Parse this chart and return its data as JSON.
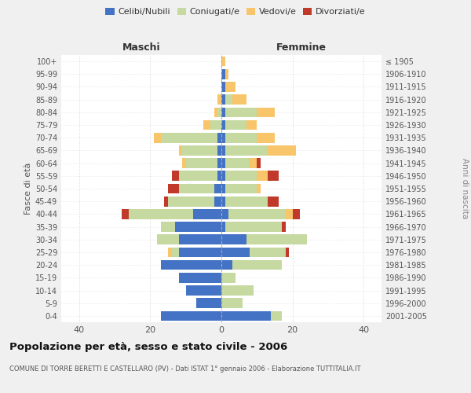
{
  "age_groups": [
    "0-4",
    "5-9",
    "10-14",
    "15-19",
    "20-24",
    "25-29",
    "30-34",
    "35-39",
    "40-44",
    "45-49",
    "50-54",
    "55-59",
    "60-64",
    "65-69",
    "70-74",
    "75-79",
    "80-84",
    "85-89",
    "90-94",
    "95-99",
    "100+"
  ],
  "birth_years": [
    "2001-2005",
    "1996-2000",
    "1991-1995",
    "1986-1990",
    "1981-1985",
    "1976-1980",
    "1971-1975",
    "1966-1970",
    "1961-1965",
    "1956-1960",
    "1951-1955",
    "1946-1950",
    "1941-1945",
    "1936-1940",
    "1931-1935",
    "1926-1930",
    "1921-1925",
    "1916-1920",
    "1911-1915",
    "1906-1910",
    "≤ 1905"
  ],
  "male": {
    "celibe": [
      17,
      7,
      10,
      12,
      17,
      12,
      12,
      13,
      8,
      2,
      2,
      1,
      1,
      1,
      1,
      0,
      0,
      0,
      0,
      0,
      0
    ],
    "coniugato": [
      0,
      0,
      0,
      0,
      0,
      2,
      6,
      4,
      18,
      13,
      10,
      11,
      9,
      10,
      16,
      3,
      1,
      0,
      0,
      0,
      0
    ],
    "vedovo": [
      0,
      0,
      0,
      0,
      0,
      1,
      0,
      0,
      0,
      0,
      0,
      0,
      1,
      1,
      2,
      2,
      1,
      1,
      0,
      0,
      0
    ],
    "divorziato": [
      0,
      0,
      0,
      0,
      0,
      0,
      0,
      0,
      2,
      1,
      3,
      2,
      0,
      0,
      0,
      0,
      0,
      0,
      0,
      0,
      0
    ]
  },
  "female": {
    "nubile": [
      14,
      0,
      0,
      0,
      3,
      8,
      7,
      1,
      2,
      1,
      1,
      1,
      1,
      1,
      1,
      1,
      1,
      1,
      1,
      1,
      0
    ],
    "coniugata": [
      3,
      6,
      9,
      4,
      14,
      10,
      17,
      16,
      16,
      12,
      9,
      9,
      7,
      12,
      9,
      6,
      9,
      2,
      0,
      0,
      0
    ],
    "vedova": [
      0,
      0,
      0,
      0,
      0,
      0,
      0,
      0,
      2,
      0,
      1,
      3,
      2,
      8,
      5,
      3,
      5,
      4,
      3,
      1,
      1
    ],
    "divorziata": [
      0,
      0,
      0,
      0,
      0,
      1,
      0,
      1,
      2,
      3,
      0,
      3,
      1,
      0,
      0,
      0,
      0,
      0,
      0,
      0,
      0
    ]
  },
  "colors": {
    "celibe": "#4472c4",
    "coniugato": "#c5d9a0",
    "vedovo": "#f8c56b",
    "divorziato": "#c0392b"
  },
  "xlim": 45,
  "title": "Popolazione per età, sesso e stato civile - 2006",
  "subtitle": "COMUNE DI TORRE BERETTI E CASTELLARO (PV) - Dati ISTAT 1° gennaio 2006 - Elaborazione TUTTITALIA.IT",
  "ylabel_left": "Fasce di età",
  "ylabel_right": "Anni di nascita",
  "xlabel_male": "Maschi",
  "xlabel_female": "Femmine",
  "bg_color": "#f0f0f0",
  "plot_bg": "#ffffff"
}
